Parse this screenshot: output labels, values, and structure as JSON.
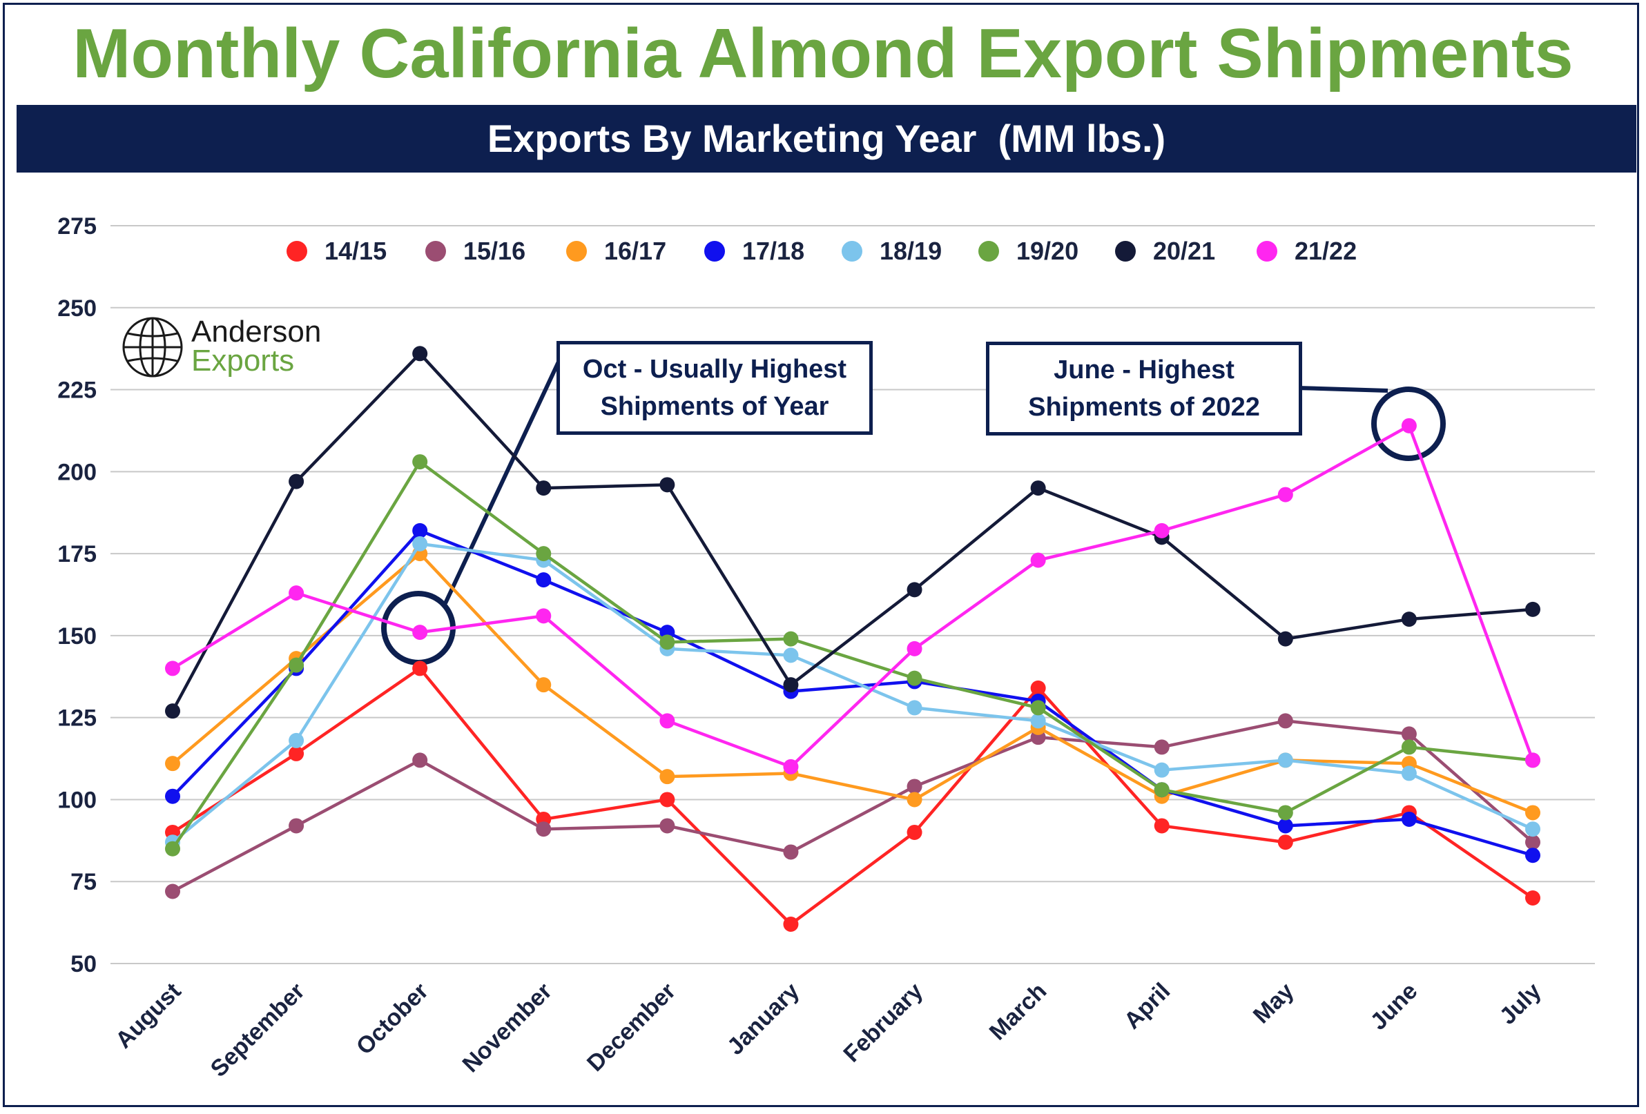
{
  "title": "Monthly California Almond Export Shipments",
  "subtitle": "Exports By Marketing Year  (MM lbs.)",
  "logo": {
    "line1": "Anderson",
    "line2": "Exports",
    "icon": "globe-icon"
  },
  "callouts": [
    {
      "lines": [
        "Oct - Usually Highest",
        "Shipments of Year"
      ],
      "target_month": "October"
    },
    {
      "lines": [
        "June - Highest",
        "Shipments of 2022"
      ],
      "target_month": "June"
    }
  ],
  "colors": {
    "title_green": "#6aa541",
    "navy": "#0d1f4f"
  },
  "chart_data": {
    "type": "line",
    "title": "Monthly California Almond Export Shipments",
    "subtitle": "Exports By Marketing Year  (MM lbs.)",
    "categories": [
      "August",
      "September",
      "October",
      "November",
      "December",
      "January",
      "February",
      "March",
      "April",
      "May",
      "June",
      "July"
    ],
    "ylim": [
      50,
      275
    ],
    "yticks": [
      50,
      75,
      100,
      125,
      150,
      175,
      200,
      225,
      250,
      275
    ],
    "grid": true,
    "legend_position": "top",
    "series": [
      {
        "name": "14/15",
        "color": "#ff2424",
        "values": [
          90,
          114,
          140,
          94,
          100,
          62,
          90,
          134,
          92,
          87,
          96,
          70
        ]
      },
      {
        "name": "15/16",
        "color": "#9b4d72",
        "values": [
          72,
          92,
          112,
          91,
          92,
          84,
          104,
          119,
          116,
          124,
          120,
          87
        ]
      },
      {
        "name": "16/17",
        "color": "#ff9a1f",
        "values": [
          111,
          143,
          175,
          135,
          107,
          108,
          100,
          122,
          101,
          112,
          111,
          96
        ]
      },
      {
        "name": "17/18",
        "color": "#1010ee",
        "values": [
          101,
          140,
          182,
          167,
          151,
          133,
          136,
          130,
          103,
          92,
          94,
          83
        ]
      },
      {
        "name": "18/19",
        "color": "#7cc4ec",
        "values": [
          87,
          118,
          178,
          173,
          146,
          144,
          128,
          124,
          109,
          112,
          108,
          91
        ]
      },
      {
        "name": "19/20",
        "color": "#6aa541",
        "values": [
          85,
          141,
          203,
          175,
          148,
          149,
          137,
          128,
          103,
          96,
          116,
          112
        ]
      },
      {
        "name": "20/21",
        "color": "#141a38",
        "values": [
          127,
          197,
          236,
          195,
          196,
          135,
          164,
          195,
          180,
          149,
          155,
          158
        ]
      },
      {
        "name": "21/22",
        "color": "#ff26f0",
        "values": [
          140,
          163,
          151,
          156,
          124,
          110,
          146,
          173,
          182,
          193,
          214,
          112
        ]
      }
    ]
  }
}
